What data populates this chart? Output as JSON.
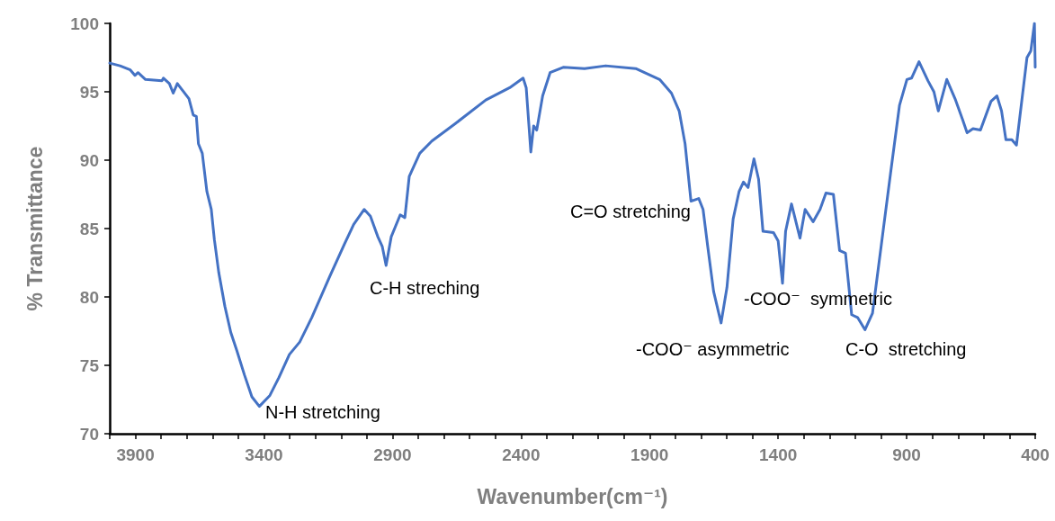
{
  "chart_data": {
    "type": "line",
    "xlabel": "Wavenumber(cm⁻¹)",
    "ylabel": "% Transmittance",
    "xlim": [
      4000,
      400
    ],
    "ylim": [
      70,
      100
    ],
    "yticks": [
      70,
      75,
      80,
      85,
      90,
      95,
      100
    ],
    "xticks": [
      {
        "value": 4000,
        "label": null
      },
      3900,
      {
        "value": 3800,
        "label": null
      },
      {
        "value": 3700,
        "label": null
      },
      {
        "value": 3600,
        "label": null
      },
      {
        "value": 3500,
        "label": null
      },
      3400,
      {
        "value": 3300,
        "label": null
      },
      {
        "value": 3200,
        "label": null
      },
      {
        "value": 3100,
        "label": null
      },
      {
        "value": 3000,
        "label": null
      },
      2900,
      {
        "value": 2800,
        "label": null
      },
      {
        "value": 2700,
        "label": null
      },
      {
        "value": 2600,
        "label": null
      },
      {
        "value": 2500,
        "label": null
      },
      2400,
      {
        "value": 2300,
        "label": null
      },
      {
        "value": 2200,
        "label": null
      },
      {
        "value": 2100,
        "label": null
      },
      {
        "value": 2000,
        "label": null
      },
      1900,
      {
        "value": 1800,
        "label": null
      },
      {
        "value": 1700,
        "label": null
      },
      {
        "value": 1600,
        "label": null
      },
      {
        "value": 1500,
        "label": null
      },
      1400,
      {
        "value": 1300,
        "label": null
      },
      {
        "value": 1200,
        "label": null
      },
      {
        "value": 1100,
        "label": null
      },
      {
        "value": 1000,
        "label": null
      },
      900,
      {
        "value": 800,
        "label": null
      },
      {
        "value": 700,
        "label": null
      },
      {
        "value": 600,
        "label": null
      },
      {
        "value": 500,
        "label": null
      },
      400
    ],
    "grid": false,
    "marker": "none",
    "line_style": "solid",
    "series": [
      {
        "color": "#4472c4",
        "x": [
          4000,
          3960,
          3920,
          3902,
          3890,
          3861,
          3797,
          3791,
          3768,
          3753,
          3737,
          3721,
          3692,
          3675,
          3663,
          3655,
          3640,
          3622,
          3605,
          3593,
          3576,
          3552,
          3529,
          3506,
          3476,
          3447,
          3418,
          3377,
          3342,
          3301,
          3261,
          3214,
          3144,
          3086,
          3051,
          3010,
          2986,
          2957,
          2940,
          2925,
          2905,
          2870,
          2852,
          2835,
          2794,
          2747,
          2654,
          2537,
          2444,
          2392,
          2380,
          2362,
          2351,
          2339,
          2316,
          2287,
          2234,
          2153,
          2071,
          1954,
          1861,
          1815,
          1785,
          1762,
          1739,
          1709,
          1692,
          1674,
          1651,
          1622,
          1599,
          1575,
          1552,
          1535,
          1517,
          1494,
          1476,
          1459,
          1418,
          1400,
          1383,
          1371,
          1348,
          1315,
          1295,
          1264,
          1237,
          1214,
          1185,
          1161,
          1138,
          1114,
          1091,
          1062,
          1033,
          998,
          963,
          928,
          899,
          881,
          852,
          817,
          794,
          777,
          744,
          712,
          683,
          665,
          642,
          613,
          572,
          549,
          531,
          514,
          491,
          473,
          432,
          417,
          403,
          400
        ],
        "values": [
          97.1,
          96.9,
          96.6,
          96.2,
          96.4,
          95.9,
          95.8,
          96.0,
          95.6,
          94.9,
          95.6,
          95.2,
          94.5,
          93.3,
          93.2,
          91.2,
          90.5,
          87.7,
          86.4,
          84.2,
          81.8,
          79.3,
          77.4,
          76.1,
          74.3,
          72.7,
          72.0,
          72.8,
          74.1,
          75.8,
          76.7,
          78.5,
          81.5,
          83.9,
          85.3,
          86.4,
          85.9,
          84.4,
          83.7,
          82.3,
          84.4,
          86.0,
          85.8,
          88.8,
          90.5,
          91.4,
          92.7,
          94.4,
          95.3,
          96.0,
          95.3,
          90.6,
          92.5,
          92.2,
          94.7,
          96.4,
          96.8,
          96.7,
          96.9,
          96.7,
          95.9,
          94.9,
          93.6,
          91.2,
          87.0,
          87.2,
          86.4,
          83.7,
          80.4,
          78.1,
          80.7,
          85.7,
          87.7,
          88.4,
          88.0,
          90.1,
          88.6,
          84.8,
          84.7,
          84.1,
          81.0,
          84.8,
          86.8,
          84.3,
          86.4,
          85.5,
          86.4,
          87.6,
          87.5,
          83.4,
          83.2,
          78.7,
          78.5,
          77.6,
          78.8,
          83.9,
          89.0,
          94.0,
          95.9,
          96.0,
          97.2,
          95.8,
          95.0,
          93.6,
          95.9,
          94.5,
          93.0,
          92.0,
          92.3,
          92.2,
          94.3,
          94.7,
          93.6,
          91.5,
          91.5,
          91.1,
          97.5,
          98.0,
          100.0,
          96.8
        ]
      }
    ],
    "annotations": [
      "N-H stretching",
      "C-H streching",
      "C=O stretching",
      "-COO⁻ asymmetric",
      "-COO⁻  symmetric",
      "C-O  stretching"
    ]
  }
}
